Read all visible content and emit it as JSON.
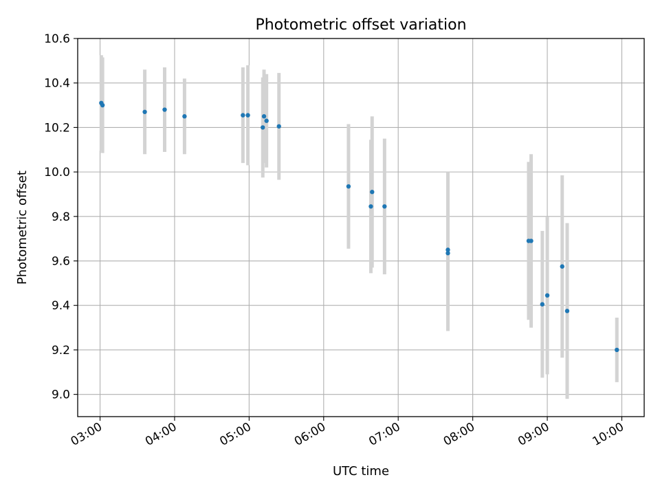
{
  "chart_data": {
    "type": "scatter",
    "title": "Photometric offset variation",
    "xlabel": "UTC time",
    "ylabel": "Photometric offset",
    "xlim": [
      "02:42",
      "10:18"
    ],
    "ylim": [
      8.9,
      10.6
    ],
    "xticks": [
      "03:00",
      "04:00",
      "05:00",
      "06:00",
      "07:00",
      "08:00",
      "09:00",
      "10:00"
    ],
    "yticks": [
      "9.0",
      "9.2",
      "9.4",
      "9.6",
      "9.8",
      "10.0",
      "10.2",
      "10.4",
      "10.6"
    ],
    "grid": true,
    "colors": {
      "points": "#1f77b4",
      "errorbars": "#d3d3d3",
      "grid": "#b0b0b0"
    },
    "series": [
      {
        "points": [
          {
            "x": "03:01",
            "y": 10.31,
            "err": 0.215
          },
          {
            "x": "03:02",
            "y": 10.3,
            "err": 0.215
          },
          {
            "x": "03:36",
            "y": 10.27,
            "err": 0.19
          },
          {
            "x": "03:52",
            "y": 10.28,
            "err": 0.19
          },
          {
            "x": "04:08",
            "y": 10.25,
            "err": 0.17
          },
          {
            "x": "04:55",
            "y": 10.255,
            "err": 0.215
          },
          {
            "x": "04:59",
            "y": 10.255,
            "err": 0.225
          },
          {
            "x": "05:11",
            "y": 10.2,
            "err": 0.225
          },
          {
            "x": "05:12",
            "y": 10.25,
            "err": 0.21
          },
          {
            "x": "05:14",
            "y": 10.23,
            "err": 0.21
          },
          {
            "x": "05:24",
            "y": 10.205,
            "err": 0.24
          },
          {
            "x": "06:20",
            "y": 9.935,
            "err": 0.28
          },
          {
            "x": "06:38",
            "y": 9.845,
            "err": 0.3
          },
          {
            "x": "06:39",
            "y": 9.91,
            "err": 0.34
          },
          {
            "x": "06:49",
            "y": 9.845,
            "err": 0.305
          },
          {
            "x": "07:40",
            "y": 9.65,
            "err": 0.35
          },
          {
            "x": "07:40",
            "y": 9.635,
            "err": 0.35
          },
          {
            "x": "08:45",
            "y": 9.69,
            "err": 0.355
          },
          {
            "x": "08:47",
            "y": 9.69,
            "err": 0.39
          },
          {
            "x": "08:56",
            "y": 9.405,
            "err": 0.33
          },
          {
            "x": "09:00",
            "y": 9.445,
            "err": 0.355
          },
          {
            "x": "09:12",
            "y": 9.575,
            "err": 0.41
          },
          {
            "x": "09:16",
            "y": 9.375,
            "err": 0.395
          },
          {
            "x": "09:56",
            "y": 9.2,
            "err": 0.145
          }
        ]
      }
    ]
  }
}
